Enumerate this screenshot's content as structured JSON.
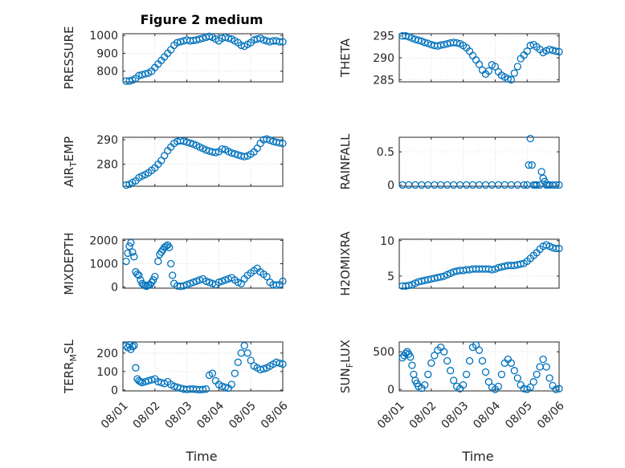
{
  "figure": {
    "title": "Figure 2 medium",
    "xlabel": "Time",
    "marker_color": "#0072BD"
  },
  "chart_data": [
    {
      "type": "scatter",
      "ylabel": "PRESSURE",
      "xlim": [
        0,
        5
      ],
      "ylim": [
        740,
        1010
      ],
      "yticks": [
        800,
        900,
        1000
      ],
      "x": [
        0.1,
        0.2,
        0.3,
        0.4,
        0.5,
        0.6,
        0.7,
        0.8,
        0.9,
        1.0,
        1.1,
        1.2,
        1.3,
        1.4,
        1.5,
        1.6,
        1.7,
        1.8,
        1.9,
        2.0,
        2.1,
        2.2,
        2.3,
        2.4,
        2.5,
        2.6,
        2.7,
        2.8,
        2.9,
        3.0,
        3.1,
        3.2,
        3.3,
        3.4,
        3.5,
        3.6,
        3.7,
        3.8,
        3.9,
        4.0,
        4.1,
        4.2,
        4.3,
        4.4,
        4.5,
        4.6,
        4.7,
        4.8,
        4.9,
        5.0
      ],
      "y": [
        745,
        745,
        750,
        760,
        775,
        780,
        785,
        790,
        800,
        820,
        840,
        860,
        880,
        900,
        920,
        945,
        960,
        965,
        970,
        975,
        970,
        972,
        975,
        980,
        985,
        990,
        995,
        990,
        980,
        970,
        985,
        990,
        985,
        980,
        970,
        960,
        945,
        940,
        950,
        960,
        975,
        980,
        985,
        975,
        970,
        965,
        970,
        970,
        965,
        965
      ]
    },
    {
      "type": "scatter",
      "ylabel": "THETA",
      "xlim": [
        0,
        5
      ],
      "ylim": [
        284.5,
        295.5
      ],
      "yticks": [
        285,
        290,
        295
      ],
      "x": [
        0.1,
        0.2,
        0.3,
        0.4,
        0.5,
        0.6,
        0.7,
        0.8,
        0.9,
        1.0,
        1.1,
        1.2,
        1.3,
        1.4,
        1.5,
        1.6,
        1.7,
        1.8,
        1.9,
        2.0,
        2.1,
        2.2,
        2.3,
        2.4,
        2.5,
        2.6,
        2.7,
        2.8,
        2.9,
        3.0,
        3.1,
        3.2,
        3.3,
        3.4,
        3.5,
        3.6,
        3.7,
        3.8,
        3.9,
        4.0,
        4.1,
        4.2,
        4.3,
        4.4,
        4.5,
        4.6,
        4.7,
        4.8,
        4.9,
        5.0
      ],
      "y": [
        295,
        295,
        294.8,
        294.5,
        294.2,
        294,
        293.8,
        293.5,
        293.3,
        293.0,
        292.8,
        292.7,
        292.9,
        293.0,
        293.2,
        293.4,
        293.5,
        293.4,
        293.2,
        292.8,
        292.3,
        291.5,
        290.5,
        289.5,
        288.5,
        287.2,
        286.3,
        287.0,
        288.4,
        288.0,
        286.8,
        286.0,
        285.6,
        285.2,
        285.0,
        286.5,
        288.0,
        289.8,
        290.6,
        291.5,
        292.8,
        293.0,
        292.5,
        291.9,
        291.2,
        291.6,
        291.9,
        291.7,
        291.5,
        291.4
      ]
    },
    {
      "type": "scatter",
      "ylabel": "AIR_TEMP",
      "ylabel_main": "AIR",
      "ylabel_sub": "T",
      "ylabel_rest": "EMP",
      "xlim": [
        0,
        5
      ],
      "ylim": [
        271,
        291
      ],
      "yticks": [
        280,
        290
      ],
      "x": [
        0.1,
        0.2,
        0.3,
        0.4,
        0.5,
        0.6,
        0.7,
        0.8,
        0.9,
        1.0,
        1.1,
        1.2,
        1.3,
        1.4,
        1.5,
        1.6,
        1.7,
        1.8,
        1.9,
        2.0,
        2.1,
        2.2,
        2.3,
        2.4,
        2.5,
        2.6,
        2.7,
        2.8,
        2.9,
        3.0,
        3.1,
        3.2,
        3.3,
        3.4,
        3.5,
        3.6,
        3.7,
        3.8,
        3.9,
        4.0,
        4.1,
        4.2,
        4.3,
        4.4,
        4.5,
        4.6,
        4.7,
        4.8,
        4.9,
        5.0
      ],
      "y": [
        271.5,
        271.8,
        272.5,
        273.2,
        274.5,
        275.2,
        275.8,
        276.5,
        277.5,
        278.5,
        280.0,
        281.5,
        283.5,
        285.5,
        287.0,
        288.5,
        289.3,
        289.6,
        289.4,
        289.0,
        288.6,
        288.2,
        287.7,
        287.0,
        286.4,
        285.8,
        285.4,
        285.0,
        284.8,
        285.1,
        286.2,
        286.0,
        285.2,
        284.6,
        284.2,
        283.8,
        283.4,
        283.1,
        283.4,
        284.1,
        285.0,
        286.5,
        288.5,
        290.0,
        290.3,
        289.8,
        289.3,
        289.0,
        288.7,
        288.5
      ]
    },
    {
      "type": "scatter",
      "ylabel": "RAINFALL",
      "xlim": [
        0,
        5
      ],
      "ylim": [
        -0.02,
        0.72
      ],
      "yticks": [
        0,
        0.5
      ],
      "x": [
        0.1,
        0.3,
        0.5,
        0.7,
        0.9,
        1.1,
        1.3,
        1.5,
        1.7,
        1.9,
        2.1,
        2.3,
        2.5,
        2.7,
        2.9,
        3.1,
        3.3,
        3.5,
        3.7,
        3.9,
        4.0,
        4.05,
        4.1,
        4.15,
        4.2,
        4.25,
        4.3,
        4.4,
        4.45,
        4.5,
        4.55,
        4.6,
        4.65,
        4.7,
        4.8,
        4.9,
        5.0
      ],
      "y": [
        0,
        0,
        0,
        0,
        0,
        0,
        0,
        0,
        0,
        0,
        0,
        0,
        0,
        0,
        0,
        0,
        0,
        0,
        0,
        0,
        0,
        0.3,
        0.7,
        0.3,
        0,
        0,
        0,
        0,
        0.2,
        0.1,
        0.05,
        0,
        0,
        0,
        0,
        0,
        0
      ]
    },
    {
      "type": "scatter",
      "ylabel": "MIXDEPTH",
      "xlim": [
        0,
        5
      ],
      "ylim": [
        -50,
        2050
      ],
      "yticks": [
        0,
        1000,
        2000
      ],
      "x": [
        0.1,
        0.15,
        0.2,
        0.25,
        0.3,
        0.35,
        0.4,
        0.45,
        0.5,
        0.55,
        0.6,
        0.65,
        0.7,
        0.75,
        0.8,
        0.85,
        0.9,
        0.95,
        1.0,
        1.1,
        1.15,
        1.2,
        1.25,
        1.3,
        1.35,
        1.4,
        1.45,
        1.5,
        1.55,
        1.6,
        1.7,
        1.8,
        1.9,
        2.0,
        2.1,
        2.2,
        2.3,
        2.4,
        2.5,
        2.6,
        2.7,
        2.8,
        2.9,
        3.0,
        3.1,
        3.2,
        3.3,
        3.4,
        3.5,
        3.6,
        3.7,
        3.8,
        3.9,
        4.0,
        4.1,
        4.2,
        4.3,
        4.4,
        4.5,
        4.6,
        4.7,
        4.8,
        4.9,
        5.0
      ],
      "y": [
        1100,
        1450,
        1750,
        1900,
        1500,
        1300,
        650,
        550,
        500,
        300,
        150,
        100,
        50,
        40,
        80,
        100,
        200,
        300,
        450,
        1100,
        1400,
        1500,
        1600,
        1700,
        1750,
        1800,
        1700,
        1000,
        500,
        150,
        50,
        30,
        50,
        100,
        150,
        200,
        250,
        300,
        350,
        250,
        200,
        150,
        100,
        200,
        250,
        300,
        350,
        400,
        300,
        200,
        150,
        350,
        500,
        600,
        700,
        800,
        650,
        550,
        450,
        200,
        100,
        80,
        100,
        250
      ]
    },
    {
      "type": "scatter",
      "ylabel": "H2OMIXRA",
      "xlim": [
        0,
        5
      ],
      "ylim": [
        3.3,
        10.2
      ],
      "yticks": [
        5,
        10
      ],
      "x": [
        0.1,
        0.2,
        0.3,
        0.4,
        0.5,
        0.6,
        0.7,
        0.8,
        0.9,
        1.0,
        1.1,
        1.2,
        1.3,
        1.4,
        1.5,
        1.6,
        1.7,
        1.8,
        1.9,
        2.0,
        2.1,
        2.2,
        2.3,
        2.4,
        2.5,
        2.6,
        2.7,
        2.8,
        2.9,
        3.0,
        3.1,
        3.2,
        3.3,
        3.4,
        3.5,
        3.6,
        3.7,
        3.8,
        3.9,
        4.0,
        4.1,
        4.2,
        4.3,
        4.4,
        4.5,
        4.6,
        4.7,
        4.8,
        4.9,
        5.0
      ],
      "y": [
        3.6,
        3.6,
        3.7,
        3.8,
        4.0,
        4.2,
        4.3,
        4.4,
        4.5,
        4.6,
        4.7,
        4.8,
        4.9,
        5.0,
        5.2,
        5.4,
        5.6,
        5.7,
        5.8,
        5.8,
        5.9,
        5.9,
        6.0,
        6.0,
        6.0,
        6.0,
        6.0,
        6.0,
        5.9,
        6.0,
        6.2,
        6.3,
        6.4,
        6.5,
        6.5,
        6.5,
        6.6,
        6.7,
        6.8,
        7.1,
        7.5,
        7.9,
        8.3,
        8.8,
        9.2,
        9.4,
        9.2,
        9.0,
        8.9,
        8.9
      ]
    },
    {
      "type": "scatter",
      "ylabel": "TERR_MSL",
      "ylabel_main": "TERR",
      "ylabel_sub": "M",
      "ylabel_rest": "SL",
      "xlim": [
        0,
        5
      ],
      "ylim": [
        -5,
        260
      ],
      "yticks": [
        0,
        100,
        200
      ],
      "x": [
        0.1,
        0.15,
        0.2,
        0.25,
        0.3,
        0.35,
        0.4,
        0.45,
        0.5,
        0.55,
        0.6,
        0.7,
        0.8,
        0.9,
        1.0,
        1.1,
        1.2,
        1.3,
        1.4,
        1.5,
        1.6,
        1.7,
        1.8,
        1.9,
        2.0,
        2.1,
        2.2,
        2.3,
        2.4,
        2.5,
        2.6,
        2.7,
        2.8,
        2.9,
        3.0,
        3.1,
        3.2,
        3.3,
        3.4,
        3.5,
        3.6,
        3.7,
        3.8,
        3.9,
        4.0,
        4.1,
        4.2,
        4.3,
        4.4,
        4.5,
        4.6,
        4.7,
        4.8,
        4.9,
        5.0
      ],
      "y": [
        240,
        230,
        245,
        220,
        235,
        240,
        120,
        60,
        50,
        45,
        40,
        45,
        50,
        55,
        60,
        45,
        40,
        35,
        45,
        30,
        20,
        15,
        10,
        5,
        3,
        5,
        5,
        3,
        2,
        3,
        5,
        80,
        90,
        50,
        30,
        20,
        15,
        10,
        30,
        90,
        150,
        200,
        240,
        200,
        160,
        130,
        120,
        110,
        115,
        120,
        130,
        140,
        150,
        145,
        140
      ]
    },
    {
      "type": "scatter",
      "ylabel": "SUN_FLUX",
      "ylabel_main": "SUN",
      "ylabel_sub": "F",
      "ylabel_rest": "LUX",
      "xlim": [
        0,
        5
      ],
      "ylim": [
        -20,
        630
      ],
      "yticks": [
        0,
        500
      ],
      "x": [
        0.1,
        0.15,
        0.2,
        0.25,
        0.3,
        0.35,
        0.4,
        0.45,
        0.5,
        0.55,
        0.6,
        0.7,
        0.8,
        0.9,
        1.0,
        1.1,
        1.2,
        1.3,
        1.4,
        1.5,
        1.6,
        1.7,
        1.8,
        1.9,
        2.0,
        2.1,
        2.2,
        2.3,
        2.4,
        2.5,
        2.6,
        2.7,
        2.8,
        2.9,
        3.0,
        3.1,
        3.2,
        3.3,
        3.4,
        3.5,
        3.6,
        3.7,
        3.8,
        3.9,
        4.0,
        4.1,
        4.2,
        4.3,
        4.4,
        4.5,
        4.6,
        4.7,
        4.8,
        4.9,
        5.0
      ],
      "y": [
        420,
        450,
        480,
        500,
        470,
        430,
        320,
        200,
        120,
        80,
        40,
        15,
        60,
        200,
        350,
        450,
        520,
        560,
        500,
        380,
        250,
        120,
        40,
        10,
        60,
        200,
        380,
        560,
        590,
        520,
        380,
        230,
        100,
        30,
        0,
        40,
        200,
        350,
        400,
        350,
        250,
        150,
        60,
        10,
        0,
        30,
        100,
        200,
        300,
        400,
        300,
        150,
        50,
        0,
        10
      ]
    }
  ],
  "xticks": [
    "08/01",
    "08/02",
    "08/03",
    "08/04",
    "08/05",
    "08/06"
  ]
}
